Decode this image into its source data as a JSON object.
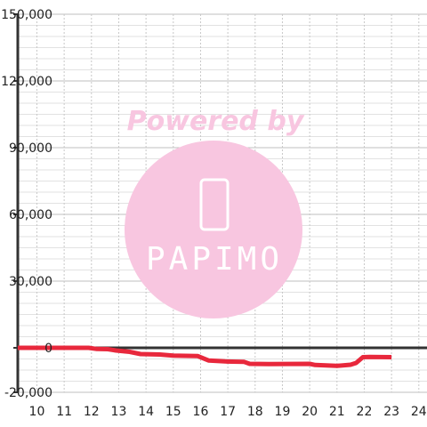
{
  "chart_data": {
    "type": "line",
    "title": "",
    "xlabel": "",
    "ylabel": "",
    "xlim": [
      9.3,
      24.3
    ],
    "ylim": [
      -20000,
      150000
    ],
    "x_ticks": [
      10,
      11,
      12,
      13,
      14,
      15,
      16,
      17,
      18,
      19,
      20,
      21,
      22,
      23,
      24
    ],
    "y_ticks": [
      -20000,
      0,
      30000,
      60000,
      90000,
      120000,
      150000
    ],
    "x_tick_labels": [
      "10",
      "11",
      "12",
      "13",
      "14",
      "15",
      "16",
      "17",
      "18",
      "19",
      "20",
      "21",
      "22",
      "23",
      "24"
    ],
    "y_tick_labels": [
      "-20,000",
      "0",
      "30,000",
      "60,000",
      "90,000",
      "120,000",
      "150,000"
    ],
    "grid": true,
    "series": [
      {
        "color": "#e8283c",
        "points": [
          [
            9.3,
            0
          ],
          [
            11.9,
            0
          ],
          [
            12.2,
            -500
          ],
          [
            12.6,
            -600
          ],
          [
            12.9,
            -1200
          ],
          [
            13.4,
            -1800
          ],
          [
            13.8,
            -2800
          ],
          [
            14.5,
            -3000
          ],
          [
            15.0,
            -3500
          ],
          [
            15.9,
            -3700
          ],
          [
            16.3,
            -5700
          ],
          [
            16.9,
            -6100
          ],
          [
            17.6,
            -6300
          ],
          [
            17.8,
            -7200
          ],
          [
            18.5,
            -7300
          ],
          [
            20.0,
            -7200
          ],
          [
            20.2,
            -7700
          ],
          [
            21.0,
            -8100
          ],
          [
            21.5,
            -7600
          ],
          [
            21.7,
            -6800
          ],
          [
            21.95,
            -4200
          ],
          [
            22.2,
            -4100
          ],
          [
            23.0,
            -4200
          ]
        ]
      }
    ]
  },
  "watermark": {
    "text": "Powered by",
    "logo_text": "PAPIMO",
    "color": "#f8c6e0"
  }
}
